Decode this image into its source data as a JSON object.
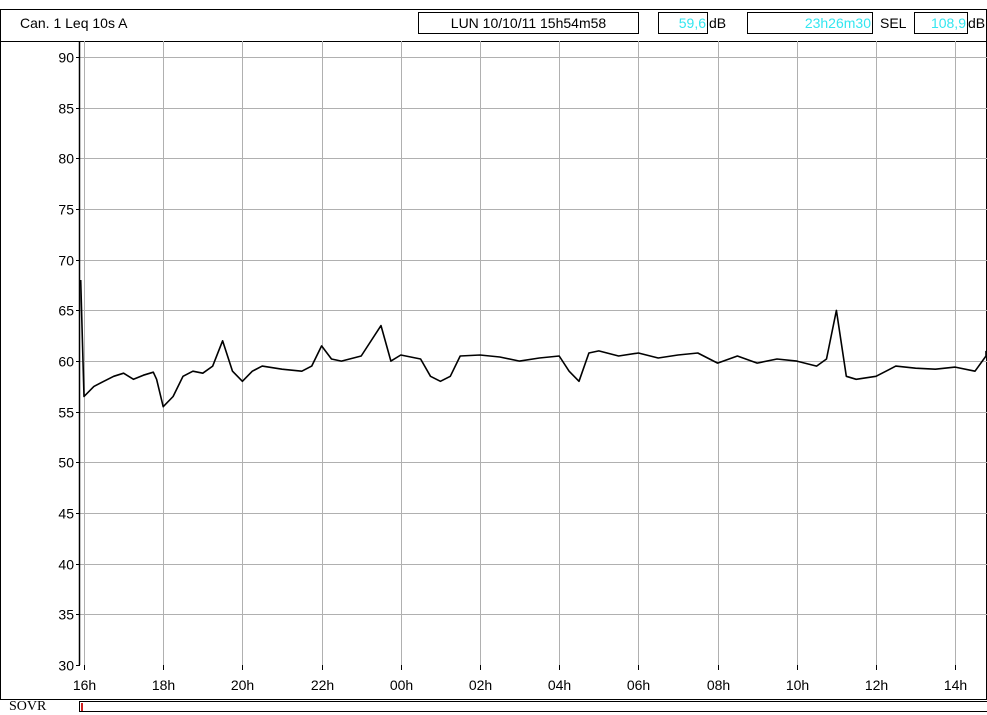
{
  "header": {
    "channel": "Can.  1  Leq 10s  A",
    "datetime": "LUN 10/10/11 15h54m58",
    "level_value": "59,6",
    "level_unit": "dB",
    "duration": "23h26m30",
    "sel_label": "SEL",
    "sel_value": "108,9",
    "sel_unit": "dB"
  },
  "colors": {
    "accent": "#33e6f0",
    "overload": "#d02020",
    "trace": "#000000"
  },
  "sovr": {
    "label": "SOVR"
  },
  "chart_data": {
    "type": "line",
    "title": "",
    "xlabel": "",
    "ylabel": "",
    "ylim": [
      30,
      91
    ],
    "xlim": [
      "15h54m58",
      "15h21m28"
    ],
    "yticks": [
      30,
      35,
      40,
      45,
      50,
      55,
      60,
      65,
      70,
      75,
      80,
      85,
      90
    ],
    "xticks": [
      "16h",
      "18h",
      "20h",
      "22h",
      "00h",
      "02h",
      "04h",
      "06h",
      "08h",
      "10h",
      "12h",
      "14h"
    ],
    "grid": true,
    "series": [
      {
        "x": [
          "15h55",
          "16h00",
          "16h15",
          "16h30",
          "16h45",
          "17h00",
          "17h15",
          "17h30",
          "17h45",
          "17h50",
          "18h00",
          "18h15",
          "18h30",
          "18h45",
          "19h00",
          "19h15",
          "19h30",
          "19h45",
          "20h00",
          "20h15",
          "20h30",
          "21h00",
          "21h30",
          "21h45",
          "22h00",
          "22h15",
          "22h30",
          "23h00",
          "23h30",
          "23h45",
          "00h00",
          "00h30",
          "00h45",
          "01h00",
          "01h15",
          "01h30",
          "02h00",
          "02h30",
          "03h00",
          "03h30",
          "04h00",
          "04h15",
          "04h30",
          "04h45",
          "05h00",
          "05h30",
          "06h00",
          "06h30",
          "07h00",
          "07h30",
          "08h00",
          "08h30",
          "09h00",
          "09h30",
          "10h00",
          "10h30",
          "10h45",
          "11h00",
          "11h15",
          "11h30",
          "12h00",
          "12h30",
          "13h00",
          "13h30",
          "14h00",
          "14h30",
          "15h00",
          "15h20"
        ],
        "values": [
          68.0,
          56.5,
          57.5,
          58.0,
          58.5,
          58.8,
          58.2,
          58.6,
          58.9,
          58.2,
          55.5,
          56.5,
          58.5,
          59.0,
          58.8,
          59.5,
          62.0,
          59.0,
          58.0,
          59.0,
          59.5,
          59.2,
          59.0,
          59.5,
          61.5,
          60.2,
          60.0,
          60.5,
          63.5,
          60.0,
          60.6,
          60.2,
          58.5,
          58.0,
          58.5,
          60.5,
          60.6,
          60.4,
          60.0,
          60.3,
          60.5,
          59.0,
          58.0,
          60.8,
          61.0,
          60.5,
          60.8,
          60.3,
          60.6,
          60.8,
          59.8,
          60.5,
          59.8,
          60.2,
          60.0,
          59.5,
          60.2,
          65.0,
          58.5,
          58.2,
          58.5,
          59.5,
          59.3,
          59.2,
          59.4,
          59.0,
          60.5,
          61.0
        ]
      }
    ]
  }
}
